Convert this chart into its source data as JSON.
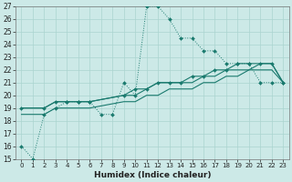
{
  "title": "",
  "xlabel": "Humidex (Indice chaleur)",
  "bg_color": "#cce9e7",
  "line_color": "#1a7a6e",
  "grid_color": "#aad4d0",
  "ylim": [
    15,
    27
  ],
  "xlim": [
    -0.5,
    23.5
  ],
  "yticks": [
    15,
    16,
    17,
    18,
    19,
    20,
    21,
    22,
    23,
    24,
    25,
    26,
    27
  ],
  "xticks": [
    0,
    1,
    2,
    3,
    4,
    5,
    6,
    7,
    8,
    9,
    10,
    11,
    12,
    13,
    14,
    15,
    16,
    17,
    18,
    19,
    20,
    21,
    22,
    23
  ],
  "s1_x": [
    0,
    1,
    2,
    3,
    4,
    5,
    6,
    7,
    8,
    9,
    10,
    11,
    12,
    13,
    14,
    15,
    16,
    17,
    18,
    19,
    20,
    21,
    22,
    23
  ],
  "s1_y": [
    16,
    15,
    18.5,
    19,
    19.5,
    19.5,
    19.5,
    18.5,
    18.5,
    21,
    20,
    27,
    27,
    26,
    24.5,
    24.5,
    23.5,
    23.5,
    22.5,
    22.5,
    22.5,
    21,
    21,
    21
  ],
  "s2_x": [
    0,
    2,
    3,
    4,
    5,
    6,
    9,
    10,
    11,
    12,
    13,
    14,
    15,
    16,
    17,
    18,
    19,
    20,
    21,
    22,
    23
  ],
  "s2_y": [
    19,
    19,
    19.5,
    19.5,
    19.5,
    19.5,
    20,
    20.5,
    20.5,
    21,
    21,
    21,
    21.5,
    21.5,
    22,
    22,
    22.5,
    22.5,
    22.5,
    22.5,
    21
  ],
  "s3_x": [
    0,
    2,
    3,
    4,
    5,
    6,
    9,
    10,
    11,
    12,
    13,
    14,
    15,
    16,
    17,
    18,
    19,
    20,
    21,
    22,
    23
  ],
  "s3_y": [
    19,
    19,
    19.5,
    19.5,
    19.5,
    19.5,
    20,
    20,
    20.5,
    21,
    21,
    21,
    21,
    21.5,
    21.5,
    22,
    22,
    22,
    22.5,
    22.5,
    21
  ],
  "s4_x": [
    0,
    2,
    3,
    4,
    5,
    6,
    9,
    10,
    11,
    12,
    13,
    14,
    15,
    16,
    17,
    18,
    19,
    20,
    21,
    22,
    23
  ],
  "s4_y": [
    18.5,
    18.5,
    19,
    19,
    19,
    19,
    19.5,
    19.5,
    20,
    20,
    20.5,
    20.5,
    20.5,
    21,
    21,
    21.5,
    21.5,
    22,
    22,
    22,
    21
  ]
}
